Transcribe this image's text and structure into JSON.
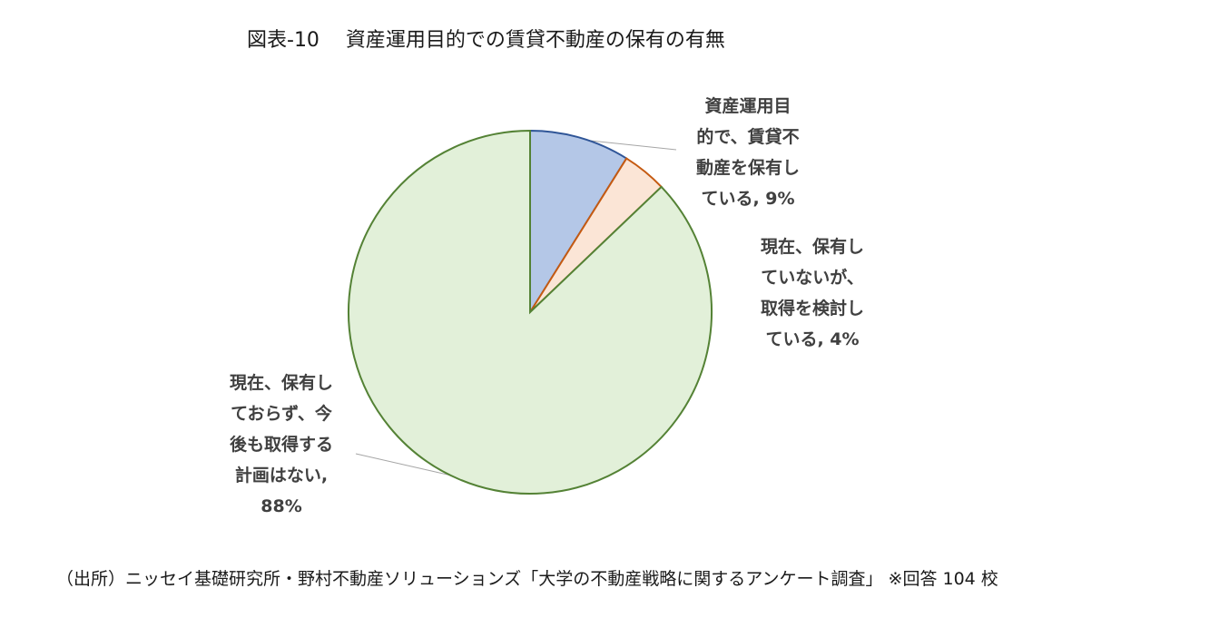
{
  "title": "図表-10　 資産運用目的での賃貸不動産の保有の有無",
  "chart_data": {
    "type": "pie",
    "slices": [
      {
        "label": "資産運用目\n的で、賃貸不\n動産を保有し\nている, 9%",
        "value": 9,
        "color": "#b4c7e7",
        "edge": "#2f5597"
      },
      {
        "label": "現在、保有し\nていないが、\n取得を検討し\nている, 4%",
        "value": 4,
        "color": "#fbe5d6",
        "edge": "#c55a11"
      },
      {
        "label": "現在、保有し\nておらず、今\n後も取得する\n計画はない,\n88%",
        "value": 88,
        "color": "#e2f0d9",
        "edge": "#548235"
      }
    ]
  },
  "source": "（出所）ニッセイ基礎研究所・野村不動産ソリューションズ「大学の不動産戦略に関するアンケート調査」 ※回答 104 校"
}
